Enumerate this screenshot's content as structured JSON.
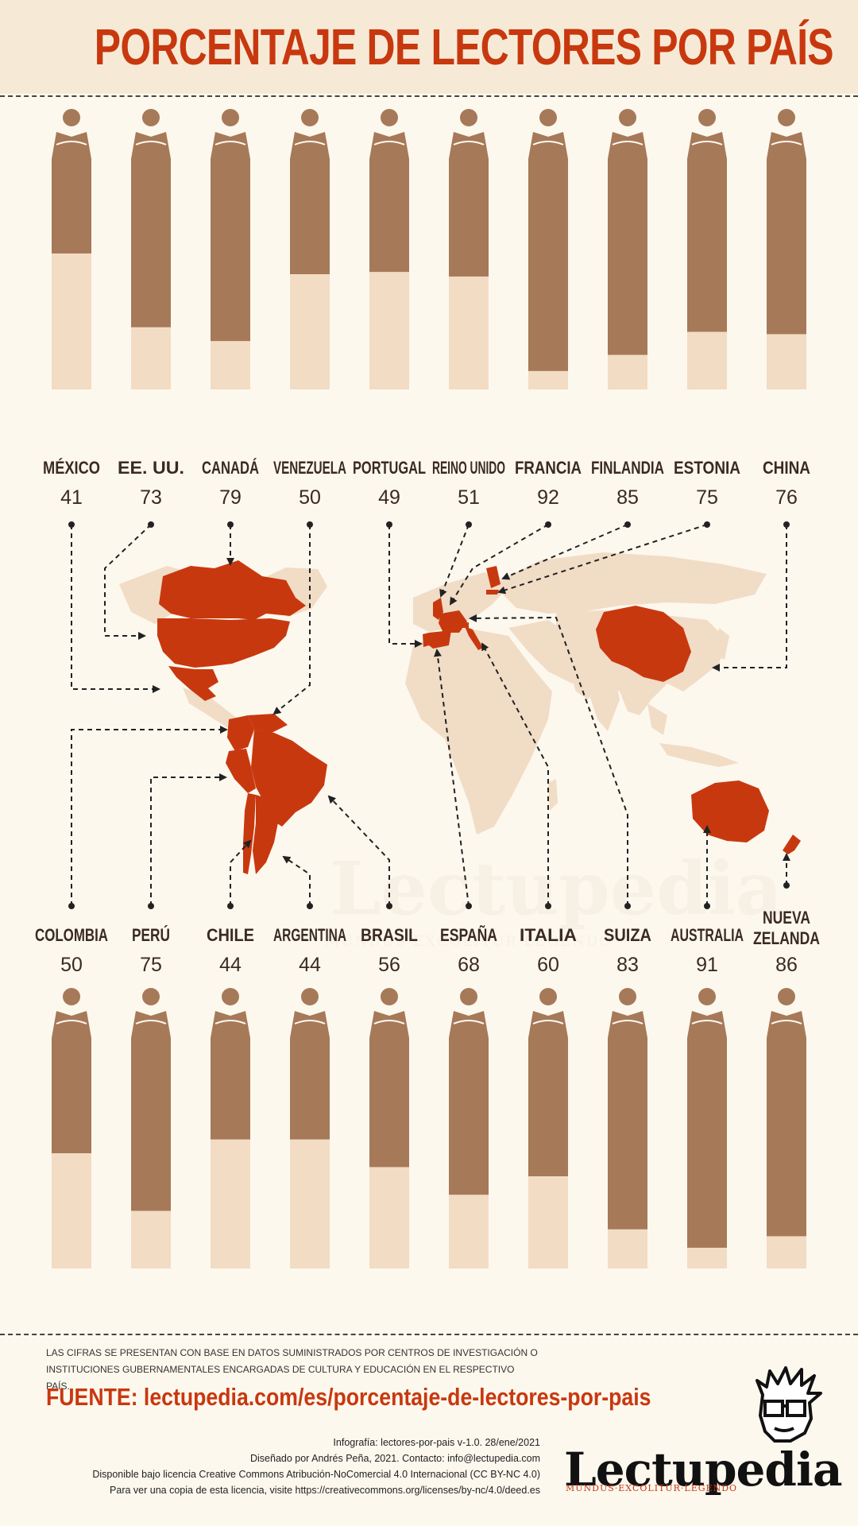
{
  "title": "PORCENTAJE DE LECTORES POR PAÍS",
  "colors": {
    "reader": "#a67959",
    "nonreader": "#f3dcc4",
    "accent": "#c8380f",
    "land": "#f1dcc6"
  },
  "chart_data": [
    {
      "type": "bar",
      "stacked": true,
      "categories": [
        "MÉXICO",
        "EE. UU.",
        "CANADÁ",
        "VENEZUELA",
        "PORTUGAL",
        "REINO UNIDO",
        "FRANCIA",
        "FINLANDIA",
        "ESTONIA",
        "CHINA"
      ],
      "values": [
        41,
        73,
        79,
        50,
        49,
        51,
        92,
        85,
        75,
        76
      ],
      "ylim": [
        0,
        100
      ]
    },
    {
      "type": "bar",
      "stacked": true,
      "categories": [
        "COLOMBIA",
        "PERÚ",
        "CHILE",
        "ARGENTINA",
        "BRASIL",
        "ESPAÑA",
        "ITALIA",
        "SUIZA",
        "AUSTRALIA",
        "NUEVA ZELANDA"
      ],
      "values": [
        50,
        75,
        44,
        44,
        56,
        68,
        60,
        83,
        91,
        86
      ],
      "ylim": [
        0,
        100
      ]
    }
  ],
  "watermark": {
    "name": "Lectupedia",
    "motto": "MUNDUS·EXCOLITUR·LEGENDO"
  },
  "footer": {
    "note": "LAS CIFRAS SE PRESENTAN CON BASE EN DATOS SUMINISTRADOS POR CENTROS DE INVESTIGACIÓN O INSTITUCIONES GUBERNAMENTALES ENCARGADAS DE CULTURA Y EDUCACIÓN EN EL RESPECTIVO PAÍS.",
    "source": "FUENTE: lectupedia.com/es/porcentaje-de-lectores-por-pais",
    "credit1": "Infografía: lectores-por-pais v-1.0. 28/ene/2021",
    "credit2": "Diseñado por Andrés Peña, 2021. Contacto: info@lectupedia.com",
    "credit3": "Disponible bajo licencia Creative Commons Atribución-NoComercial 4.0 Internacional (CC BY-NC 4.0)",
    "credit4": "Para ver una copia de esta licencia, visite https://creativecommons.org/licenses/by-nc/4.0/deed.es"
  },
  "brand": {
    "name": "Lectupedia",
    "motto": "MUNDUS·EXCOLITUR·LEGENDO"
  }
}
